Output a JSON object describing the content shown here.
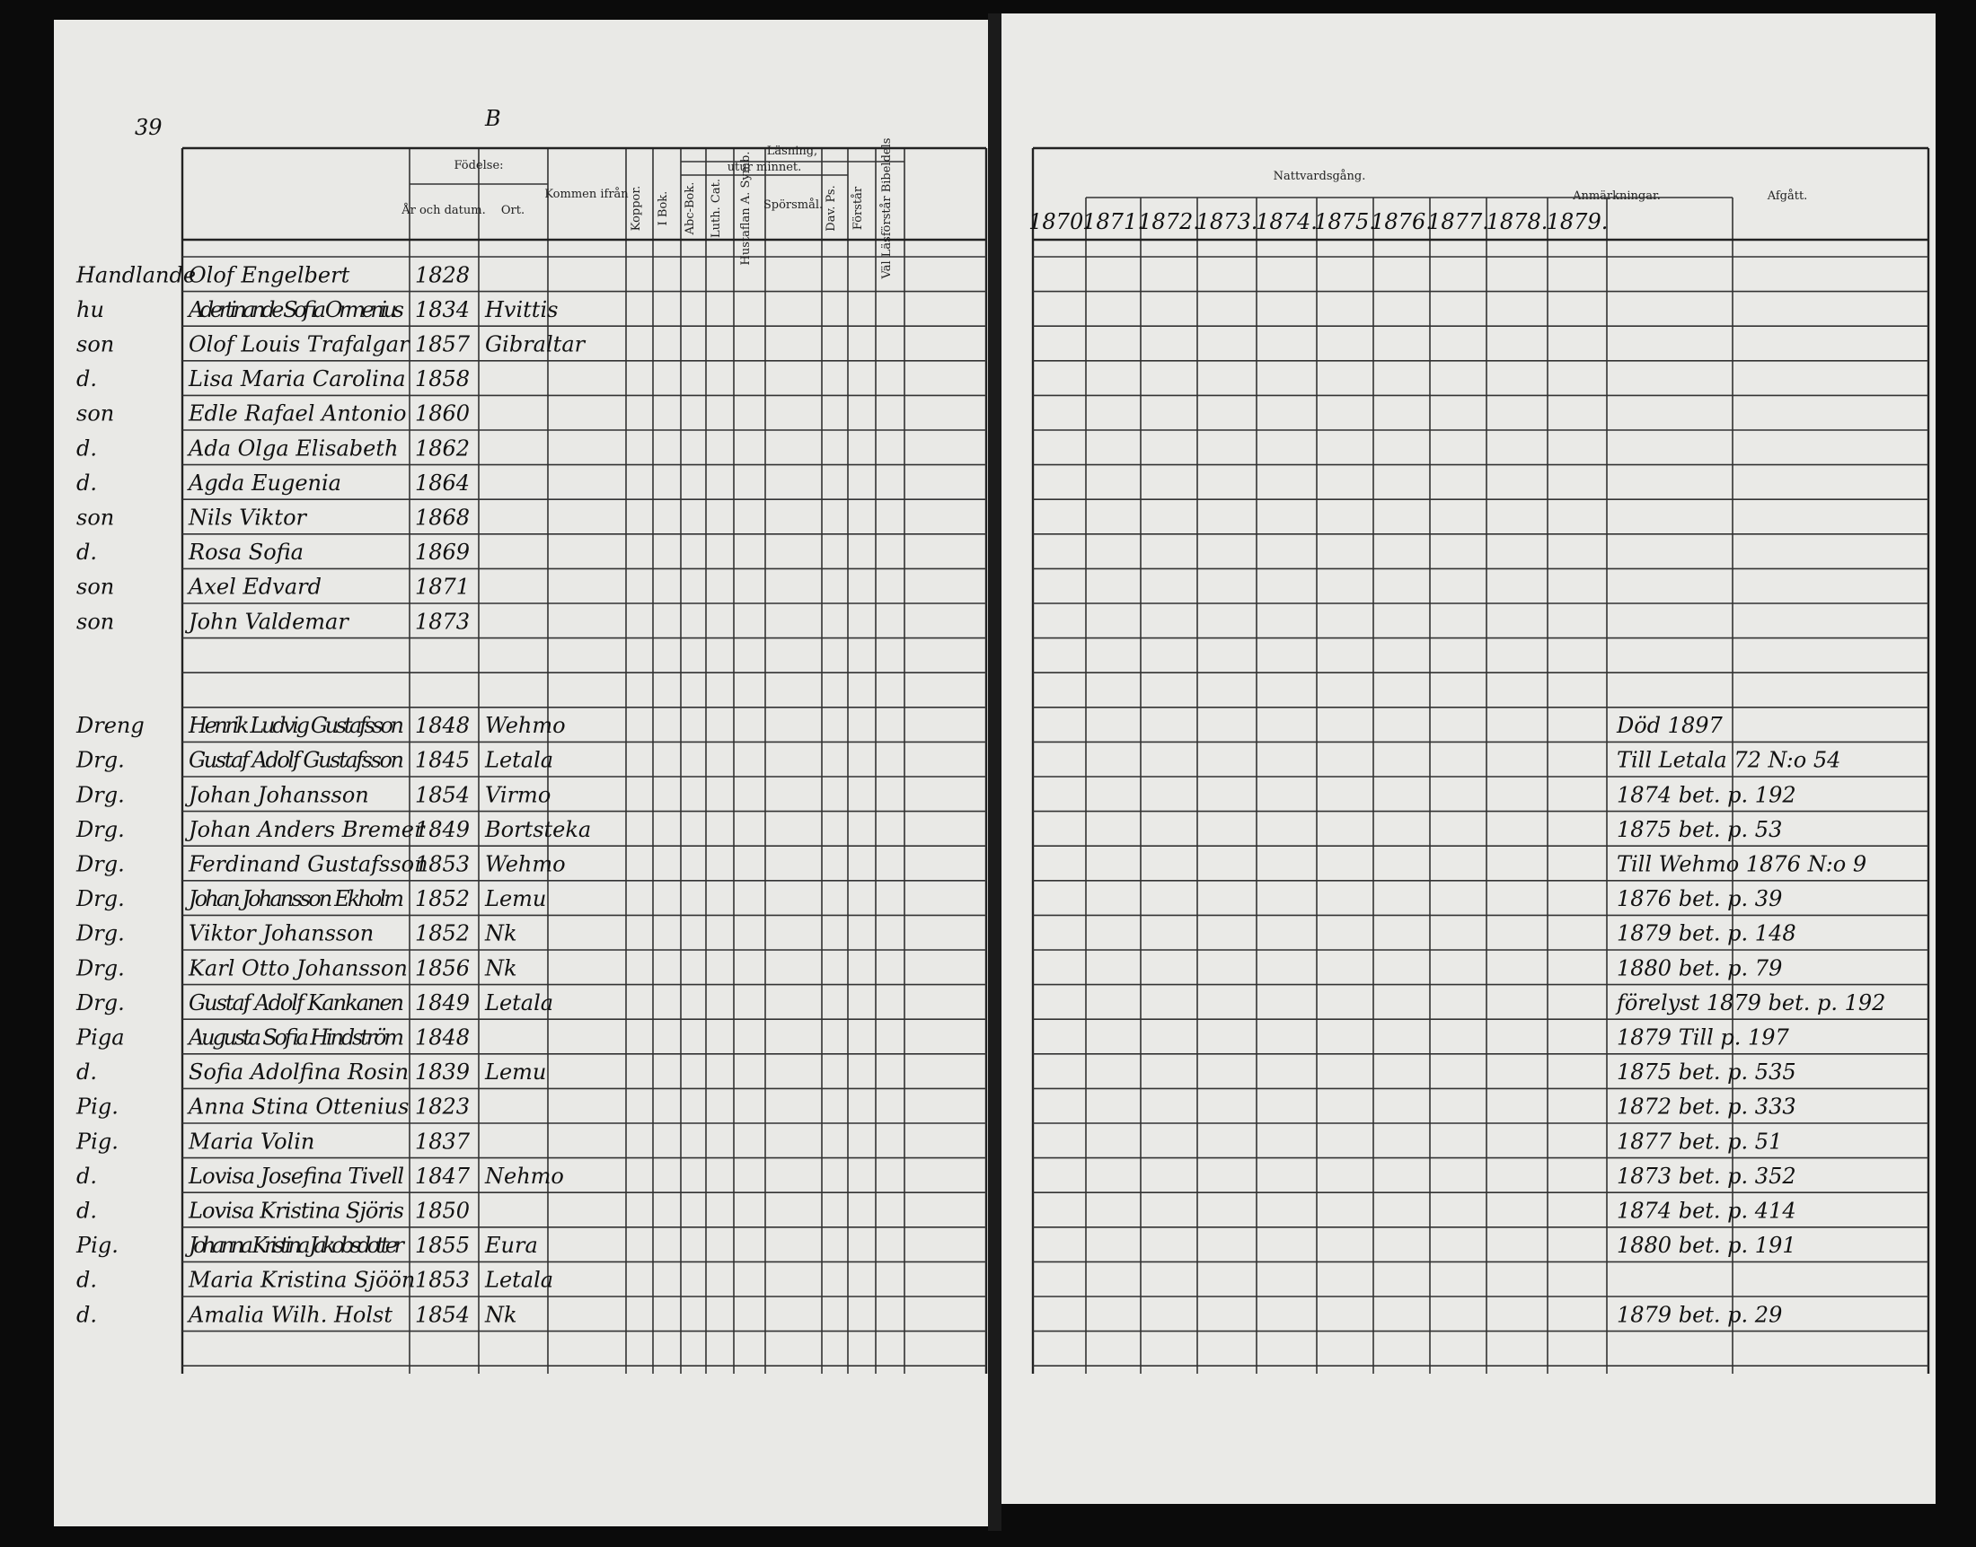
{
  "left_page": {
    "page_number": "39",
    "letter": "B",
    "headers": {
      "birth": "Födelse:",
      "year_date": "År och datum.",
      "place": "Ort.",
      "came_from": "Kommen ifrån",
      "pox": "Koppor.",
      "reading": "Läsning,",
      "by_heart": "utur minnet.",
      "in_book": "I Bok.",
      "abc_book": "Abc-Bok.",
      "luth_cat": "Luth. Cat.",
      "table_symb": "Hustaflan A. Symb.",
      "questions": "Spörsmål.",
      "dav_ps": "Dav. Ps.",
      "understands": "Förstår",
      "bible": "Väl Läsförstår Bibeldels"
    }
  },
  "right_page": {
    "headers": {
      "communion": "Nattvardsgång.",
      "remarks": "Anmärkningar.",
      "departed": "Afgått."
    },
    "years": [
      "1870.",
      "1871.",
      "1872.",
      "1873.",
      "1874.",
      "1875.",
      "1876.",
      "1877.",
      "1878.",
      "1879."
    ]
  },
  "family_rows": [
    {
      "role": "Handlande",
      "name": "Olof Engelbert",
      "year": "1828"
    },
    {
      "role": "hu",
      "name": "Adertinande Sofia Ormenius",
      "year": "1834",
      "place": "Hvittis"
    },
    {
      "role": "son",
      "name": "Olof Louis Trafalgar",
      "year": "1857",
      "place": "Gibraltar"
    },
    {
      "role": "d.",
      "name": "Lisa Maria Carolina",
      "year": "1858"
    },
    {
      "role": "son",
      "name": "Edle Rafael Antonio",
      "year": "1860"
    },
    {
      "role": "d.",
      "name": "Ada Olga Elisabeth",
      "year": "1862"
    },
    {
      "role": "d.",
      "name": "Agda Eugenia",
      "year": "1864"
    },
    {
      "role": "son",
      "name": "Nils Viktor",
      "year": "1868"
    },
    {
      "role": "d.",
      "name": "Rosa Sofia",
      "year": "1869"
    },
    {
      "role": "son",
      "name": "Axel Edvard",
      "year": "1871"
    },
    {
      "role": "son",
      "name": "John Valdemar",
      "year": "1873"
    }
  ],
  "servant_rows": [
    {
      "role": "Dreng",
      "name": "Henrik Ludvig Gustafsson",
      "year": "1848",
      "place": "Wehmo",
      "remark": "Död 1897"
    },
    {
      "role": "Drg.",
      "name": "Gustaf Adolf Gustafsson",
      "year": "1845",
      "place": "Letala",
      "remark": "Till Letala 72 N:o 54"
    },
    {
      "role": "Drg.",
      "name": "Johan Johansson",
      "year": "1854",
      "place": "Virmo",
      "remark": "1874 bet. p. 192"
    },
    {
      "role": "Drg.",
      "name": "Johan Anders Bremer",
      "year": "1849",
      "place": "Bortsteka",
      "remark": "1875 bet. p. 53"
    },
    {
      "role": "Drg.",
      "name": "Ferdinand Gustafsson",
      "year": "1853",
      "place": "Wehmo",
      "remark": "Till Wehmo 1876 N:o 9"
    },
    {
      "role": "Drg.",
      "name": "Johan Johansson Ekholm",
      "year": "1852",
      "place": "Lemu",
      "remark": "1876 bet. p. 39"
    },
    {
      "role": "Drg.",
      "name": "Viktor Johansson",
      "year": "1852",
      "place": "Nk",
      "remark": "1879 bet. p. 148"
    },
    {
      "role": "Drg.",
      "name": "Karl Otto Johansson",
      "year": "1856",
      "place": "Nk",
      "remark": "1880 bet. p. 79"
    },
    {
      "role": "Drg.",
      "name": "Gustaf Adolf Kankanen",
      "year": "1849",
      "place": "Letala",
      "remark": "förelyst 1879 bet. p. 192"
    },
    {
      "role": "Piga",
      "name": "Augusta Sofia Hindström",
      "year": "1848",
      "remark": "1879 Till p. 197"
    },
    {
      "role": "d.",
      "name": "Sofia Adolfina Rosin",
      "year": "1839",
      "place": "Lemu",
      "remark": "1875 bet. p. 535"
    },
    {
      "role": "Pig.",
      "name": "Anna Stina Ottenius",
      "year": "1823",
      "remark": "1872 bet. p. 333"
    },
    {
      "role": "Pig.",
      "name": "Maria Volin",
      "year": "1837",
      "remark": "1877 bet. p. 51"
    },
    {
      "role": "d.",
      "name": "Lovisa Josefina Tivell",
      "year": "1847",
      "place": "Nehmo",
      "remark": "1873 bet. p. 352"
    },
    {
      "role": "d.",
      "name": "Lovisa Kristina Sjöris",
      "year": "1850",
      "remark": "1874 bet. p. 414"
    },
    {
      "role": "Pig.",
      "name": "Johanna Kristina Jakobsdotter",
      "year": "1855",
      "place": "Eura",
      "remark": "1880 bet. p. 191"
    },
    {
      "role": "d.",
      "name": "Maria Kristina Sjöön",
      "year": "1853",
      "place": "Letala"
    },
    {
      "role": "d.",
      "name": "Amalia Wilh. Holst",
      "year": "1854",
      "place": "Nk",
      "remark": "1879 bet. p. 29"
    }
  ]
}
